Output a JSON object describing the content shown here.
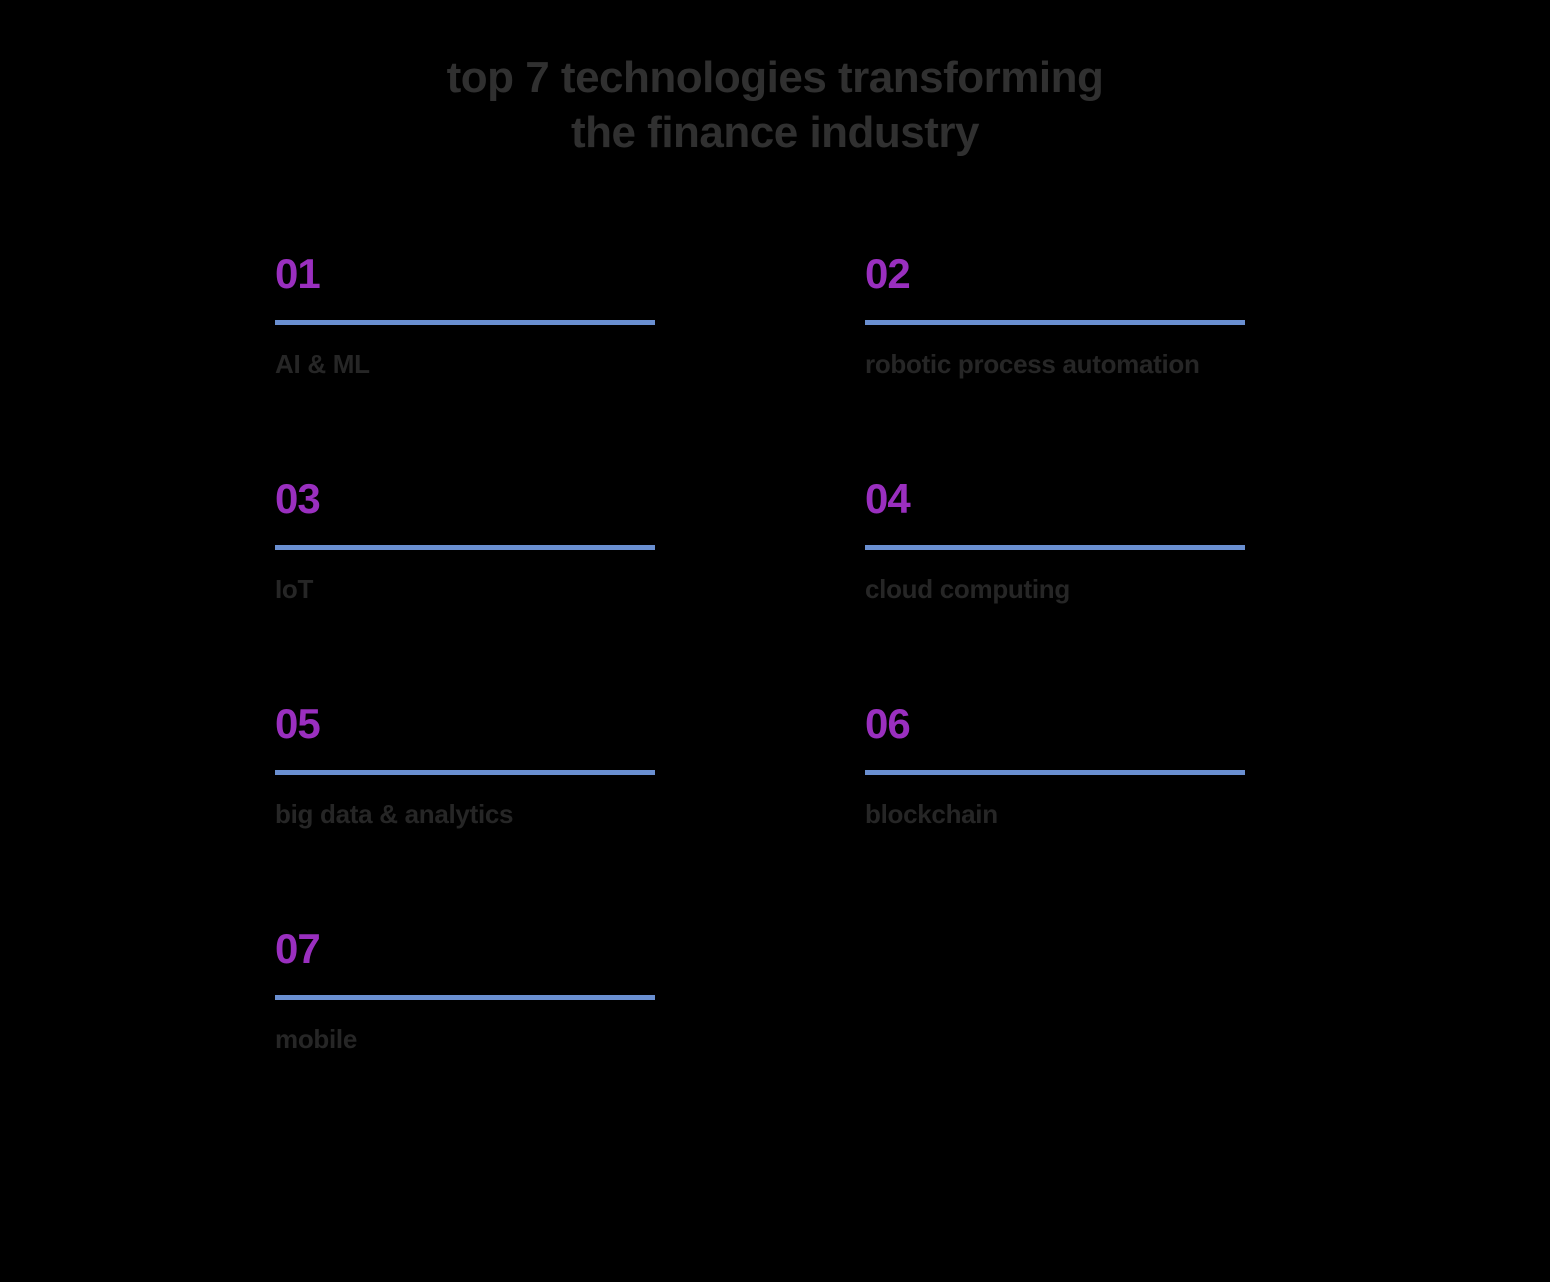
{
  "infographic": {
    "type": "infographic",
    "title_line1": "top 7 technologies transforming",
    "title_line2": "the finance industry",
    "background_color": "#000000",
    "title_color": "#303030",
    "title_fontsize": 44,
    "title_fontweight": 700,
    "number_color": "#9a2fbf",
    "number_fontsize": 42,
    "number_fontweight": 700,
    "divider_color": "#6a8fd1",
    "divider_height": 5,
    "divider_width": 380,
    "label_color": "#262626",
    "label_fontsize": 26,
    "label_fontweight": 600,
    "columns": 2,
    "column_gap": 180,
    "row_gap": 95,
    "items": [
      {
        "number": "01",
        "label": "AI & ML"
      },
      {
        "number": "02",
        "label": "robotic process automation"
      },
      {
        "number": "03",
        "label": "IoT"
      },
      {
        "number": "04",
        "label": "cloud computing"
      },
      {
        "number": "05",
        "label": "big data & analytics"
      },
      {
        "number": "06",
        "label": "blockchain"
      },
      {
        "number": "07",
        "label": "mobile"
      }
    ]
  }
}
